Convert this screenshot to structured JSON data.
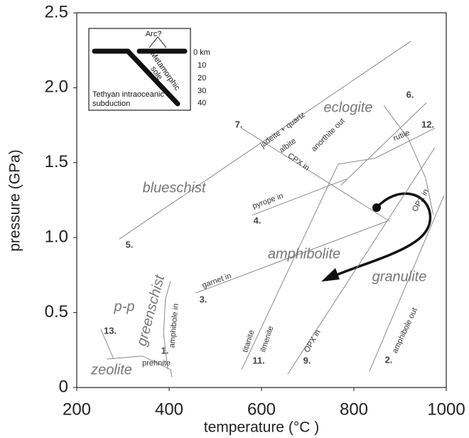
{
  "chart_data": {
    "type": "line",
    "xlabel": "temperature (°C )",
    "ylabel": "pressure (GPa)",
    "xlim": [
      200,
      1000
    ],
    "ylim": [
      0,
      2.5
    ],
    "xticks": [
      200,
      400,
      600,
      800,
      1000
    ],
    "yticks": [
      0,
      0.5,
      {
        "value": 1,
        "label": "1.0"
      },
      {
        "value": 1.5,
        "label": "1.5"
      },
      {
        "value": 2,
        "label": "2.0"
      },
      {
        "value": 2.5,
        "label": "2.5"
      }
    ],
    "line_color": "#8a8a8a",
    "series": [
      {
        "x": [
          292,
          923
        ],
        "values": [
          0.99,
          2.31
        ]
      },
      {
        "x": [
          557,
          877
        ],
        "values": [
          1.73,
          1.11
        ]
      },
      {
        "x": [
          772,
          957
        ],
        "values": [
          1.35,
          1.9
        ]
      },
      {
        "x": [
          580,
          783
        ],
        "values": [
          1.15,
          1.39
        ]
      },
      {
        "x": [
          766,
          846,
          975
        ],
        "values": [
          1.49,
          1.53,
          1.73
        ]
      },
      {
        "x": [
          457,
          872
        ],
        "values": [
          0.63,
          1.11
        ]
      },
      {
        "x": [
          557,
          766
        ],
        "values": [
          0.12,
          1.49
        ]
      },
      {
        "x": [
          657,
          975
        ],
        "values": [
          0.09,
          1.6
        ]
      },
      {
        "x": [
          834,
          995
        ],
        "values": [
          0.11,
          1.28
        ]
      },
      {
        "x": [
          865,
          918,
          955,
          972
        ],
        "values": [
          1.88,
          1.66,
          1.4,
          1.15
        ]
      },
      {
        "x": [
          397,
          388,
          392,
          403
        ],
        "values": [
          0.12,
          0.36,
          0.59,
          0.71
        ]
      },
      {
        "x": [
          265,
          342,
          403,
          406
        ],
        "values": [
          0.19,
          0.21,
          0.12,
          0.07
        ]
      },
      {
        "x": [
          252,
          280
        ],
        "values": [
          0.39,
          0.19
        ]
      }
    ],
    "annotations": [
      "eclogite",
      "blueschist",
      "amphibolite",
      "granulite",
      "greenschist",
      "p-p",
      "zeolite",
      "prehnite",
      "jadeite + quartz",
      "albite",
      "anorthite out",
      "CPX in",
      "rutile",
      "pyrope in",
      "garnet in",
      "amphibole in",
      "titanite",
      "ilmenite",
      "OPX in",
      "OPX in",
      "amphibole out",
      "1.",
      "2.",
      "3.",
      "4.",
      "5.",
      "6.",
      "7.",
      "9.",
      "11.",
      "12.",
      "13."
    ],
    "inset": {
      "texts": [
        "Arc?",
        "0 km",
        "10",
        "20",
        "30",
        "40",
        "Metamorphic",
        "sole",
        "Tethyan intraoceanic",
        "subduction"
      ]
    }
  }
}
